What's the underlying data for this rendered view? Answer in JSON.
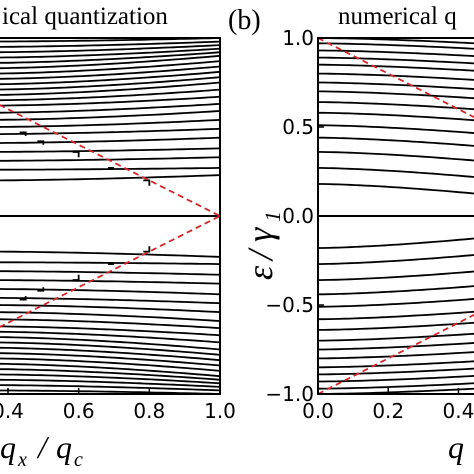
{
  "chart_data": [
    {
      "panel": "a",
      "type": "line",
      "title": "ical quantization",
      "xlabel": "q_x/q_c",
      "ylabel": "",
      "xlim": [
        0.35,
        1.0
      ],
      "ylim": [
        -1.0,
        1.0
      ],
      "xticks": [
        "0.4",
        "0.6",
        "0.8",
        "1.0"
      ],
      "grid": false,
      "curve_color": "#000000",
      "dashed_color": "#d62728",
      "dashed_lines": [
        {
          "x": [
            0.35,
            1.0
          ],
          "y": [
            0.65,
            0.0
          ]
        },
        {
          "x": [
            0.35,
            1.0
          ],
          "y": [
            -0.65,
            0.0
          ]
        }
      ],
      "zero_line": 0.0,
      "branches_upper": {
        "x_start": 0.35,
        "y_start": [
          0.2,
          0.26,
          0.31,
          0.36,
          0.41,
          0.46,
          0.5,
          0.54,
          0.58,
          0.62,
          0.65,
          0.68,
          0.71,
          0.74,
          0.77,
          0.8,
          0.83,
          0.86,
          0.89,
          0.92,
          0.95,
          0.98
        ],
        "y_end_at_x1": [
          0.23,
          0.27,
          0.33,
          0.38,
          0.44,
          0.49,
          0.54,
          0.59,
          0.63,
          0.67,
          0.71,
          0.75,
          0.78,
          0.81,
          0.84,
          0.87,
          0.9,
          0.92,
          0.94,
          0.96,
          0.98,
          1.0
        ],
        "terminate_at": [
          {
            "x": 0.8,
            "y": 0.2,
            "lower_curve_end": 0.17
          },
          {
            "x": 0.7,
            "y": 0.27,
            "lower_curve_end": 0.27
          },
          {
            "x": 0.6,
            "y": 0.36,
            "lower_curve_end": 0.33
          },
          {
            "x": 0.5,
            "y": 0.42,
            "lower_curve_end": 0.4
          },
          {
            "x": 0.45,
            "y": 0.47,
            "lower_curve_end": 0.45
          }
        ]
      }
    },
    {
      "panel": "b",
      "type": "line",
      "title": "numerical q",
      "xlabel": "q",
      "ylabel": "ε/γ_1",
      "ylabel_main": "ε/γ",
      "ylabel_sub": "1",
      "xlim": [
        0.0,
        0.45
      ],
      "ylim": [
        -1.0,
        1.0
      ],
      "yticks": [
        "1.0",
        "0.5",
        "0.0",
        "−0.5",
        "−1.0"
      ],
      "xticks": [
        "0.0",
        "0.2",
        "0.4"
      ],
      "grid": false,
      "curve_color": "#000000",
      "dashed_color": "#d62728",
      "dashed_lines": [
        {
          "x": [
            0.0,
            0.45
          ],
          "y": [
            1.0,
            0.55
          ]
        },
        {
          "x": [
            0.0,
            0.45
          ],
          "y": [
            -1.0,
            -0.55
          ]
        }
      ],
      "zero_line": 0.0,
      "levels_upper": [
        1.0,
        0.97,
        0.93,
        0.89,
        0.85,
        0.8,
        0.75,
        0.7,
        0.64,
        0.58,
        0.51,
        0.44,
        0.36,
        0.27,
        0.18
      ]
    }
  ],
  "labels": {
    "title_left": "ical quantization",
    "panel_tag_b": "(b)",
    "title_right": "numerical q",
    "xlabel_left_q": "q",
    "xlabel_left_x": "x",
    "xlabel_left_slash": "/",
    "xlabel_left_q2": "q",
    "xlabel_left_c": "c",
    "ylabel_eps": "ε",
    "ylabel_slash": "/",
    "ylabel_gamma": "γ",
    "ylabel_sub": "1",
    "xlabel_right_q": "q"
  }
}
